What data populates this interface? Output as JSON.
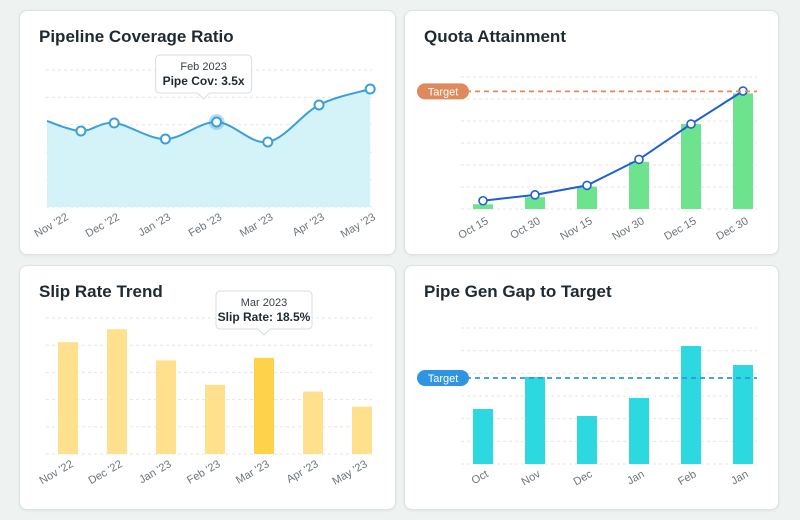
{
  "chart_data": [
    {
      "id": "pipeline-coverage",
      "type": "area",
      "title": "Pipeline Coverage Ratio",
      "categories": [
        "Nov '22",
        "Dec '22",
        "Jan '23",
        "Feb '23",
        "Mar '23",
        "Apr '23",
        "May '23"
      ],
      "series": [
        {
          "values": [
            2.6,
            3.4,
            1.8,
            3.5,
            1.5,
            5.2,
            6.8
          ]
        }
      ],
      "x_points": [
        0.35,
        1.0,
        2.0,
        3.0,
        4.0,
        5.0,
        6.0
      ],
      "ylim": [
        -5,
        9
      ],
      "grid": true,
      "color": "#3aa0d8",
      "fill": "#d4f3f8",
      "tooltip": {
        "index": 3,
        "title": "Feb 2023",
        "label": "Pipe Cov: 3.5x"
      }
    },
    {
      "id": "quota-attainment",
      "type": "bar",
      "title": "Quota Attainment",
      "categories": [
        "Oct 15",
        "Oct 30",
        "Nov 15",
        "Nov 30",
        "Dec 15",
        "Dec 30"
      ],
      "values": [
        4,
        10,
        19,
        40,
        72,
        98
      ],
      "line_values": [
        7,
        12,
        20,
        42,
        72,
        100
      ],
      "ylim": [
        0,
        100
      ],
      "target": {
        "label": "Target",
        "value": 98
      },
      "grid": true,
      "bar_color": "#6de38d",
      "line_color": "#1d5fd6",
      "target_color": "#e0895c"
    },
    {
      "id": "slip-rate",
      "type": "bar",
      "title": "Slip Rate Trend",
      "categories": [
        "Nov '22",
        "Dec '22",
        "Jan '23",
        "Feb '23",
        "Mar '23",
        "Apr '23",
        "May '23"
      ],
      "values": [
        21.5,
        24.0,
        18.0,
        13.3,
        18.5,
        12.0,
        9.1
      ],
      "ylim": [
        0,
        25
      ],
      "grid": true,
      "bar_color": "#ffe08c",
      "highlight_color": "#ffd24c",
      "tooltip": {
        "index": 4,
        "title": "Mar 2023",
        "label": "Slip Rate: 18.5%"
      }
    },
    {
      "id": "pipe-gen-gap",
      "type": "bar",
      "title": "Pipe Gen Gap to Target",
      "categories": [
        "Oct",
        "Nov",
        "Dec",
        "Jan",
        "Feb",
        "Jan"
      ],
      "values": [
        55,
        87,
        48,
        66,
        118,
        99
      ],
      "ylim": [
        0,
        140
      ],
      "target": {
        "label": "Target",
        "value": 86
      },
      "grid": true,
      "bar_color": "#2dd9e0",
      "target_color": "#2f95e0"
    }
  ]
}
